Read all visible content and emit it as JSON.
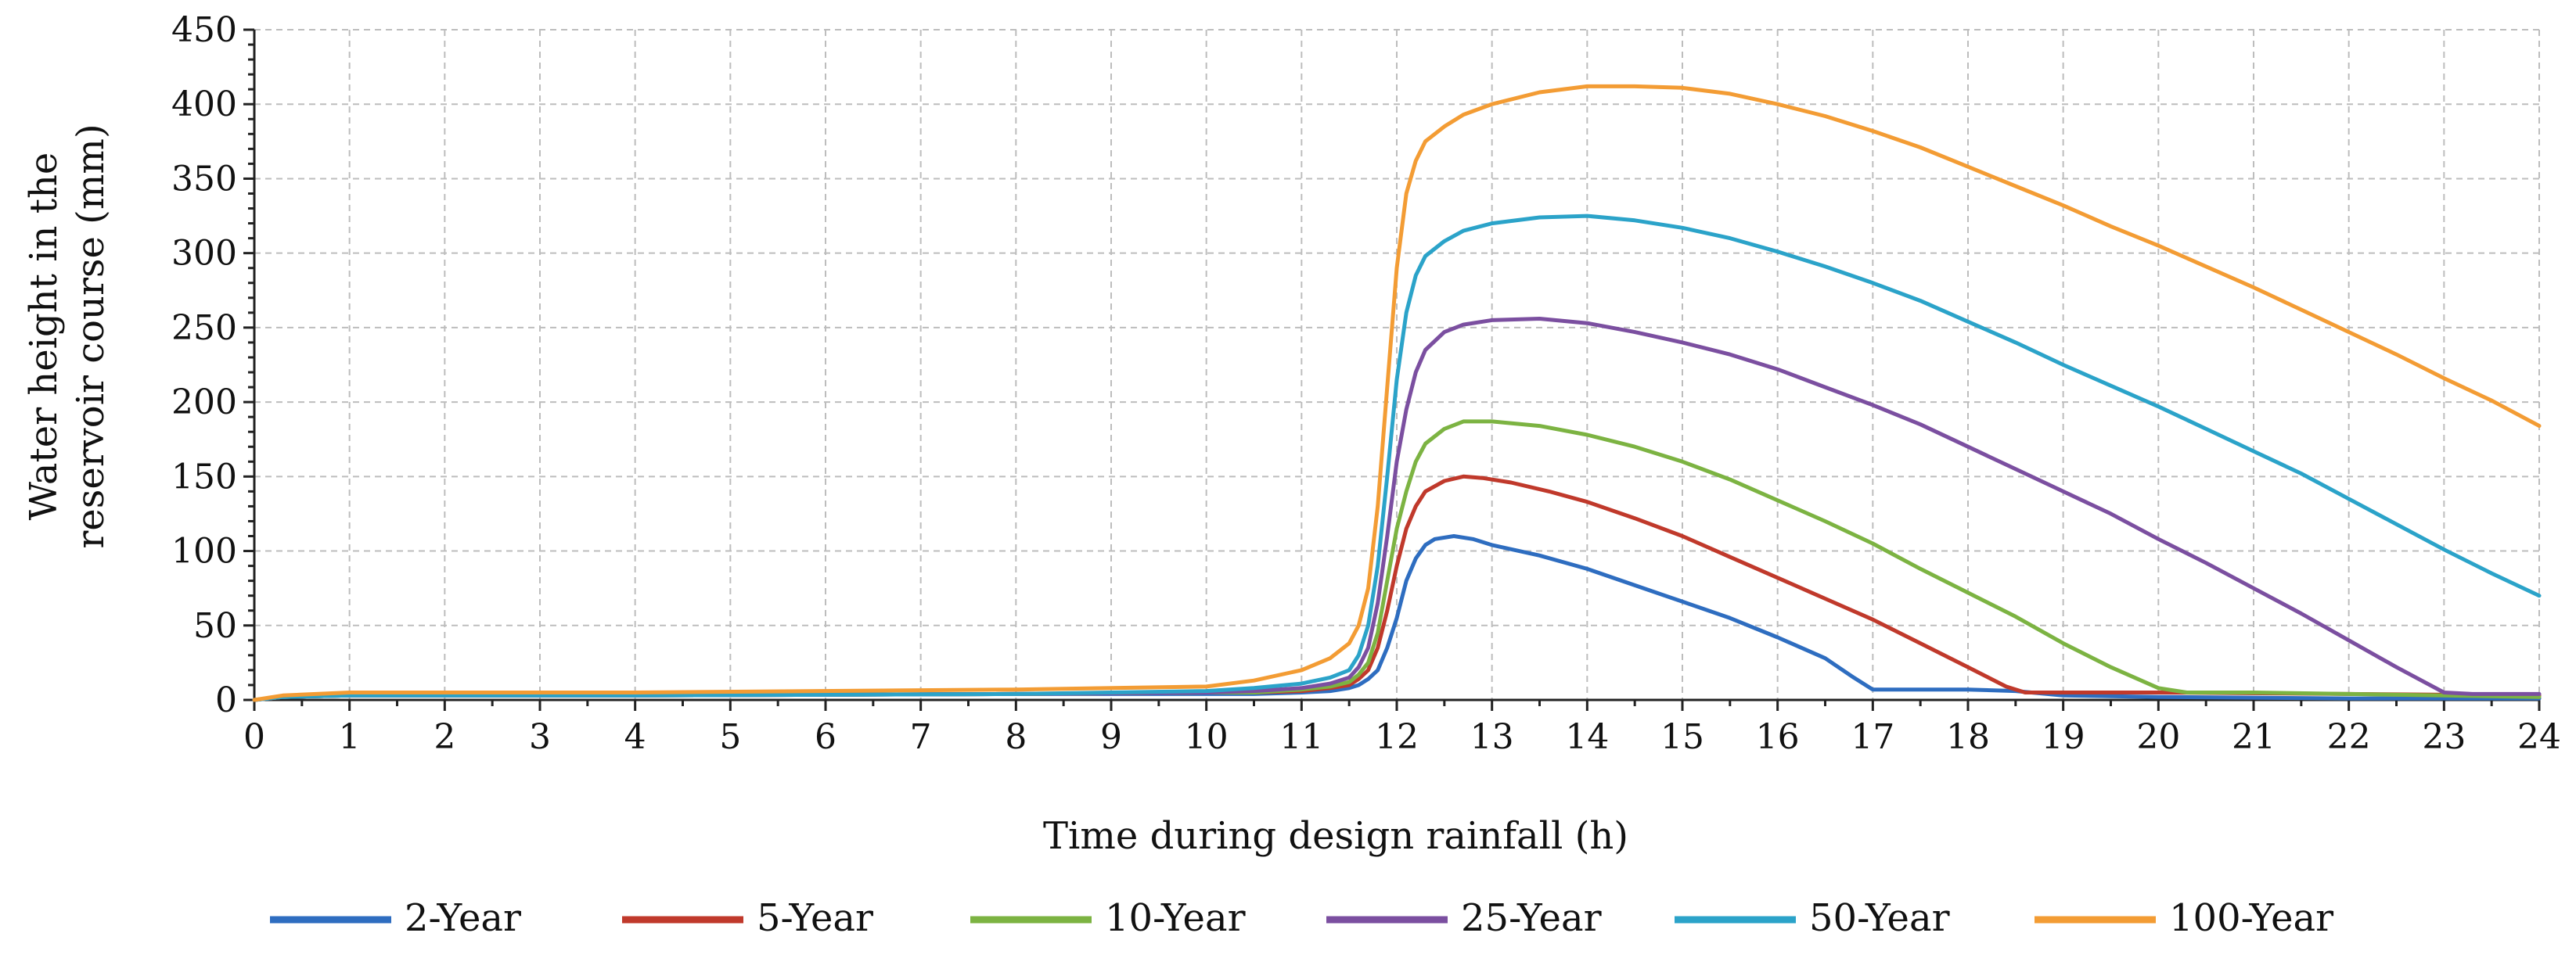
{
  "chart_data": {
    "type": "line",
    "title": "",
    "xlabel": "Time during design rainfall (h)",
    "ylabel": [
      "Water height in the",
      "reservoir course (mm)"
    ],
    "xlim": [
      0,
      24
    ],
    "ylim": [
      0,
      450
    ],
    "xticks": [
      0,
      1,
      2,
      3,
      4,
      5,
      6,
      7,
      8,
      9,
      10,
      11,
      12,
      13,
      14,
      15,
      16,
      17,
      18,
      19,
      20,
      21,
      22,
      23,
      24
    ],
    "yticks": [
      0,
      50,
      100,
      150,
      200,
      250,
      300,
      350,
      400,
      450
    ],
    "grid": true,
    "legend_position": "bottom",
    "series": [
      {
        "name": "2-Year",
        "color": "#2E6DC0",
        "x": [
          0,
          0.3,
          1,
          4,
          8,
          10,
          10.5,
          11,
          11.3,
          11.5,
          11.6,
          11.7,
          11.8,
          11.9,
          12.0,
          12.1,
          12.2,
          12.3,
          12.4,
          12.6,
          12.8,
          13.0,
          13.5,
          14,
          14.5,
          15,
          15.5,
          16,
          16.5,
          16.8,
          17,
          17.5,
          18,
          18.5,
          19,
          20,
          22,
          24
        ],
        "y": [
          0,
          2,
          3,
          3,
          4,
          4,
          4,
          5,
          6,
          8,
          10,
          14,
          20,
          35,
          55,
          80,
          95,
          104,
          108,
          110,
          108,
          104,
          97,
          88,
          77,
          66,
          55,
          42,
          28,
          15,
          7,
          7,
          7,
          6,
          3,
          2,
          1,
          1
        ]
      },
      {
        "name": "5-Year",
        "color": "#C0392B",
        "x": [
          0,
          0.3,
          1,
          4,
          8,
          10,
          10.5,
          11,
          11.3,
          11.5,
          11.6,
          11.7,
          11.8,
          11.9,
          12.0,
          12.1,
          12.2,
          12.3,
          12.5,
          12.7,
          12.9,
          13.2,
          13.6,
          14,
          14.5,
          15,
          15.5,
          16,
          16.5,
          17,
          17.5,
          18,
          18.4,
          18.6,
          19,
          20,
          22,
          24
        ],
        "y": [
          0,
          2,
          3,
          3,
          4,
          5,
          5,
          6,
          8,
          10,
          14,
          20,
          35,
          60,
          90,
          115,
          130,
          140,
          147,
          150,
          149,
          146,
          140,
          133,
          122,
          110,
          96,
          82,
          68,
          54,
          38,
          22,
          9,
          5,
          5,
          5,
          4,
          3
        ]
      },
      {
        "name": "10-Year",
        "color": "#7CB342",
        "x": [
          0,
          0.3,
          1,
          4,
          8,
          10,
          10.5,
          11,
          11.3,
          11.5,
          11.6,
          11.7,
          11.8,
          11.9,
          12.0,
          12.1,
          12.2,
          12.3,
          12.5,
          12.7,
          13.0,
          13.5,
          14,
          14.5,
          15,
          15.5,
          16,
          16.5,
          17,
          17.5,
          18,
          18.5,
          19,
          19.5,
          20,
          20.3,
          21,
          22,
          23,
          24
        ],
        "y": [
          0,
          2,
          3,
          3,
          4,
          5,
          5,
          7,
          9,
          12,
          17,
          25,
          45,
          80,
          115,
          140,
          160,
          172,
          182,
          187,
          187,
          184,
          178,
          170,
          160,
          148,
          134,
          120,
          105,
          88,
          72,
          56,
          38,
          22,
          8,
          5,
          5,
          4,
          3,
          2
        ]
      },
      {
        "name": "25-Year",
        "color": "#7B4FA0",
        "x": [
          0,
          0.3,
          1,
          4,
          8,
          10,
          10.5,
          11,
          11.3,
          11.5,
          11.6,
          11.7,
          11.8,
          11.9,
          12.0,
          12.1,
          12.2,
          12.3,
          12.5,
          12.7,
          13.0,
          13.5,
          14,
          14.5,
          15,
          15.5,
          16,
          16.5,
          17,
          17.5,
          18,
          18.5,
          19,
          19.5,
          20,
          20.5,
          21,
          21.5,
          22,
          22.5,
          23,
          23.3,
          24
        ],
        "y": [
          0,
          2,
          3,
          3,
          4,
          5,
          6,
          8,
          11,
          15,
          22,
          35,
          65,
          110,
          160,
          195,
          220,
          235,
          247,
          252,
          255,
          256,
          253,
          247,
          240,
          232,
          222,
          210,
          198,
          185,
          170,
          155,
          140,
          125,
          108,
          92,
          75,
          58,
          40,
          22,
          5,
          4,
          4
        ]
      },
      {
        "name": "50-Year",
        "color": "#2BA3C9",
        "x": [
          0,
          0.3,
          1,
          4,
          8,
          10,
          10.5,
          11,
          11.3,
          11.5,
          11.6,
          11.7,
          11.8,
          11.9,
          12.0,
          12.1,
          12.2,
          12.3,
          12.5,
          12.7,
          13.0,
          13.5,
          14,
          14.5,
          15,
          15.5,
          16,
          16.5,
          17,
          17.5,
          18,
          18.5,
          19,
          19.5,
          20,
          20.5,
          21,
          21.5,
          22,
          22.5,
          23,
          23.5,
          24
        ],
        "y": [
          0,
          2,
          3,
          3,
          4,
          6,
          8,
          11,
          15,
          20,
          30,
          50,
          90,
          150,
          215,
          260,
          285,
          298,
          308,
          315,
          320,
          324,
          325,
          322,
          317,
          310,
          301,
          291,
          280,
          268,
          254,
          240,
          225,
          211,
          197,
          182,
          167,
          152,
          135,
          118,
          101,
          85,
          70
        ]
      },
      {
        "name": "100-Year",
        "color": "#F39C34",
        "x": [
          0,
          0.3,
          1,
          4,
          8,
          10,
          10.5,
          11,
          11.3,
          11.5,
          11.6,
          11.7,
          11.8,
          11.9,
          12.0,
          12.1,
          12.2,
          12.3,
          12.5,
          12.7,
          13.0,
          13.5,
          14,
          14.5,
          15,
          15.5,
          16,
          16.5,
          17,
          17.5,
          18,
          18.5,
          19,
          19.5,
          20,
          20.5,
          21,
          21.5,
          22,
          22.5,
          23,
          23.5,
          24
        ],
        "y": [
          0,
          3,
          5,
          5,
          7,
          9,
          13,
          20,
          28,
          38,
          50,
          75,
          130,
          210,
          290,
          340,
          362,
          375,
          385,
          393,
          400,
          408,
          412,
          412,
          411,
          407,
          400,
          392,
          382,
          371,
          358,
          345,
          332,
          318,
          305,
          291,
          277,
          262,
          247,
          232,
          216,
          201,
          184
        ]
      }
    ]
  }
}
